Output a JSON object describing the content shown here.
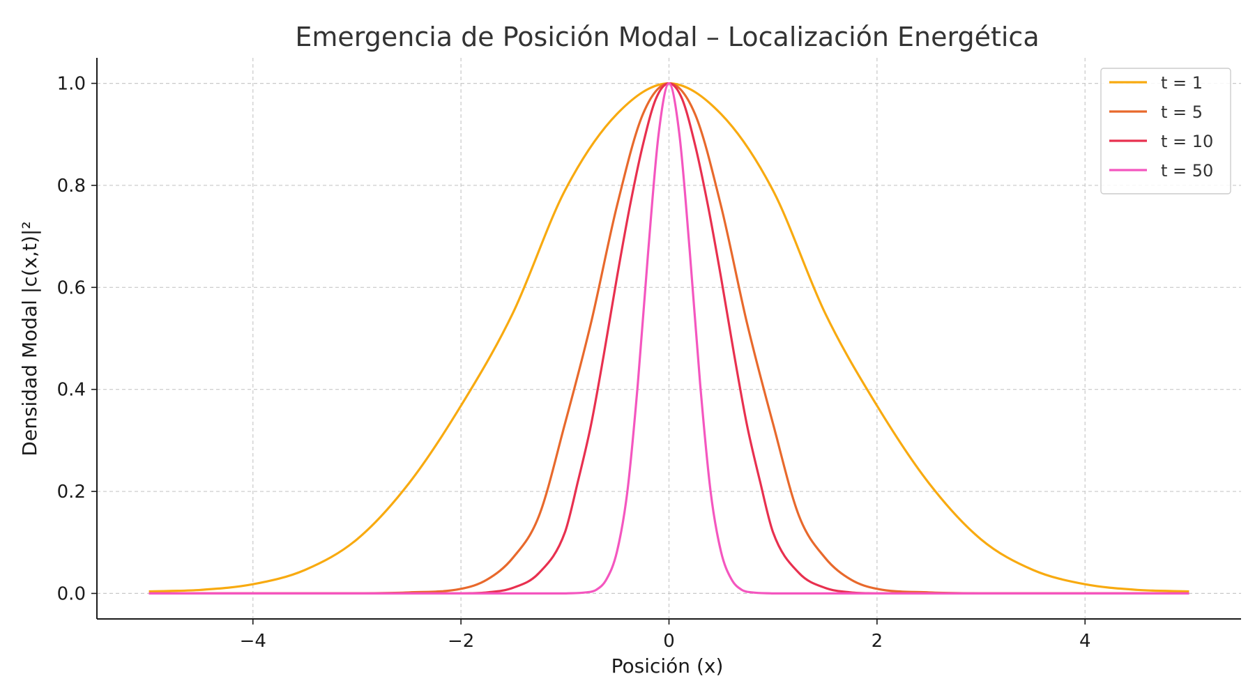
{
  "chart_data": {
    "type": "line",
    "title": "Emergencia de Posición Modal – Localización Energética",
    "xlabel": "Posición (x)",
    "ylabel": "Densidad Modal |c(x,t)|²",
    "xlim": [
      -5.5,
      5.5
    ],
    "ylim": [
      -0.05,
      1.05
    ],
    "x_ticks": [
      -4,
      -2,
      0,
      2,
      4
    ],
    "x_tick_labels": [
      "−4",
      "−2",
      "0",
      "2",
      "4"
    ],
    "y_ticks": [
      0.0,
      0.2,
      0.4,
      0.6,
      0.8,
      1.0
    ],
    "y_tick_labels": [
      "0.0",
      "0.2",
      "0.4",
      "0.6",
      "0.8",
      "1.0"
    ],
    "grid": true,
    "legend_position": "top-right",
    "x_range": [
      -5,
      5
    ],
    "series": [
      {
        "name": "t = 1",
        "color": "#F8AA10",
        "x": [
          -5,
          -4.5,
          -4,
          -3.5,
          -3,
          -2.5,
          -2,
          -1.5,
          -1,
          -0.5,
          0,
          0.5,
          1,
          1.5,
          2,
          2.5,
          3,
          3.5,
          4,
          4.5,
          5
        ],
        "values": [
          0.004,
          0.007,
          0.018,
          0.046,
          0.106,
          0.216,
          0.368,
          0.55,
          0.79,
          0.94,
          1.0,
          0.94,
          0.79,
          0.55,
          0.368,
          0.216,
          0.106,
          0.046,
          0.018,
          0.007,
          0.004
        ]
      },
      {
        "name": "t = 5",
        "color": "#E8692C",
        "x": [
          -3,
          -2.5,
          -2,
          -1.75,
          -1.5,
          -1.25,
          -1,
          -0.75,
          -0.5,
          -0.25,
          0,
          0.25,
          0.5,
          0.75,
          1,
          1.25,
          1.5,
          1.75,
          2,
          2.5,
          3
        ],
        "values": [
          0.0,
          0.002,
          0.009,
          0.027,
          0.07,
          0.152,
          0.333,
          0.53,
          0.76,
          0.94,
          1.0,
          0.94,
          0.76,
          0.53,
          0.333,
          0.152,
          0.07,
          0.027,
          0.009,
          0.002,
          0.0
        ]
      },
      {
        "name": "t = 10",
        "color": "#E8304F",
        "x": [
          -2,
          -1.75,
          -1.5,
          -1.25,
          -1,
          -0.875,
          -0.75,
          -0.625,
          -0.5,
          -0.375,
          -0.25,
          -0.125,
          0,
          0.125,
          0.25,
          0.375,
          0.5,
          0.625,
          0.75,
          0.875,
          1,
          1.25,
          1.5,
          1.75,
          2
        ],
        "values": [
          0.0,
          0.002,
          0.011,
          0.04,
          0.12,
          0.22,
          0.33,
          0.47,
          0.62,
          0.76,
          0.88,
          0.97,
          1.0,
          0.97,
          0.88,
          0.76,
          0.62,
          0.47,
          0.33,
          0.22,
          0.12,
          0.04,
          0.011,
          0.002,
          0.0
        ]
      },
      {
        "name": "t = 50",
        "color": "#F456BF",
        "x": [
          -1,
          -0.8,
          -0.7,
          -0.6,
          -0.5,
          -0.4,
          -0.3,
          -0.2,
          -0.1,
          0,
          0.1,
          0.2,
          0.3,
          0.4,
          0.5,
          0.6,
          0.7,
          0.8,
          1
        ],
        "values": [
          0.0,
          0.002,
          0.007,
          0.028,
          0.082,
          0.2,
          0.41,
          0.67,
          0.9,
          1.0,
          0.9,
          0.67,
          0.41,
          0.2,
          0.082,
          0.028,
          0.007,
          0.002,
          0.0
        ]
      }
    ]
  }
}
